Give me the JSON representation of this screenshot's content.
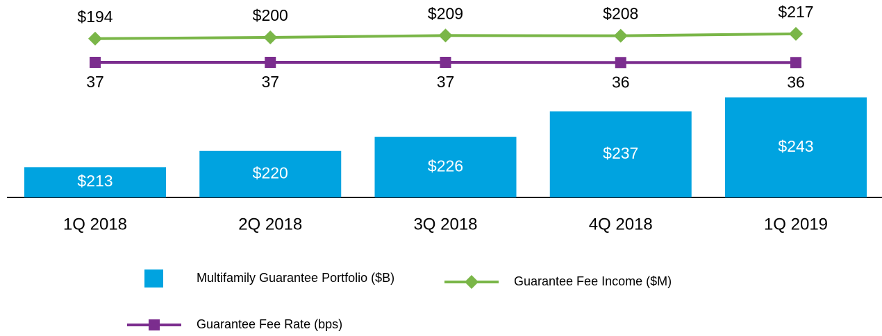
{
  "chart_data": {
    "type": "bar_line",
    "categories": [
      "1Q 2018",
      "2Q 2018",
      "3Q 2018",
      "4Q 2018",
      "1Q 2019"
    ],
    "ylim": [
      200,
      250
    ],
    "series": [
      {
        "name": "Multifamily Guarantee Portfolio ($B)",
        "type": "bar",
        "color": "#00a3e0",
        "values": [
          213,
          220,
          226,
          237,
          243
        ],
        "value_labels": [
          "$213",
          "$220",
          "$226",
          "$237",
          "$243"
        ]
      },
      {
        "name": "Guarantee Fee Income ($M)",
        "type": "line",
        "marker": "diamond",
        "color": "#7ab648",
        "axis": "y2",
        "values": [
          194,
          200,
          209,
          208,
          217
        ],
        "value_labels": [
          "$194",
          "$200",
          "$209",
          "$208",
          "$217"
        ]
      },
      {
        "name": "Guarantee Fee Rate (bps)",
        "type": "line",
        "marker": "square",
        "color": "#7b2d8e",
        "axis": "y3",
        "values": [
          37,
          37,
          37,
          36,
          36
        ]
      }
    ],
    "y2lim": [
      0,
      250
    ],
    "y3lim": [
      0,
      100
    ]
  }
}
